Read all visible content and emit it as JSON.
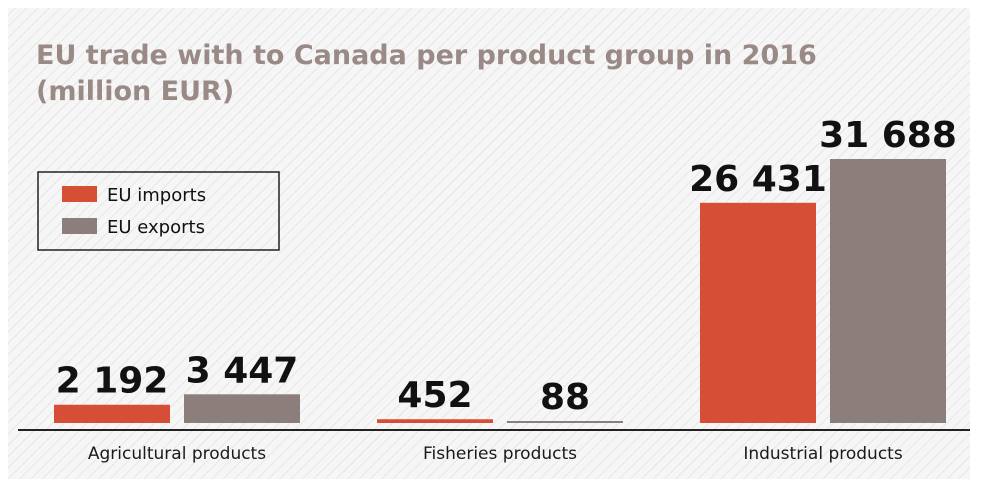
{
  "chart_data": {
    "type": "bar",
    "title_lines": [
      "EU trade with to Canada per product group in 2016",
      "(million EUR)"
    ],
    "categories": [
      "Agricultural products",
      "Fisheries products",
      "Industrial products"
    ],
    "series": [
      {
        "name": "EU imports",
        "values": [
          2192,
          452,
          26431
        ],
        "labels": [
          "2 192",
          "452",
          "26 431"
        ],
        "color": "#d54e35"
      },
      {
        "name": "EU exports",
        "values": [
          3447,
          88,
          31688
        ],
        "labels": [
          "3 447",
          "88",
          "31 688"
        ],
        "color": "#8c7e7a"
      }
    ],
    "ylim": [
      0,
      35000
    ],
    "grid": false,
    "legend_position": "top-left",
    "colors": {
      "title": "#9a8a86",
      "background_stripe": "#e6e6e6",
      "axis": "#222222"
    }
  }
}
